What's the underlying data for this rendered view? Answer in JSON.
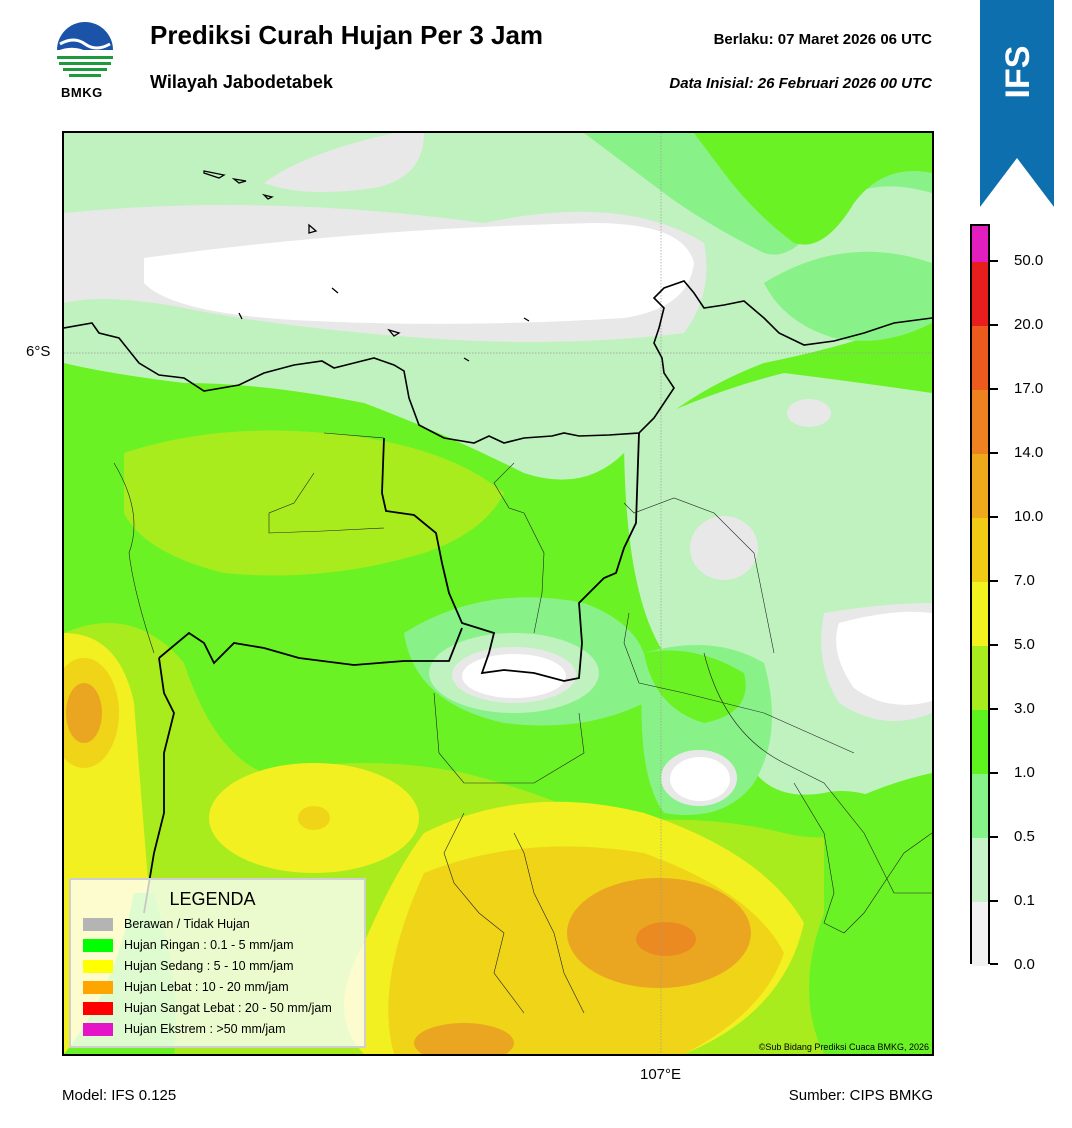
{
  "header": {
    "title": "Prediksi Curah Hujan Per 3 Jam",
    "subtitle": "Wilayah Jabodetabek",
    "valid_label": "Berlaku:  07 Maret 2026 06 UTC",
    "init_label": "Data Inisial:  26 Februari 2026 00 UTC",
    "logo_text": "BMKG",
    "badge_text": "IFS"
  },
  "map": {
    "lat_label": "6°S",
    "lon_label": "107°E",
    "copyright": "©Sub Bidang Prediksi Cuaca BMKG, 2026",
    "colors": {
      "white": "#ffffff",
      "lightgray": "#e8e8e8",
      "pale_green": "#bff2bf",
      "light_green": "#88f288",
      "green": "#6af224",
      "yellow_green": "#a8ec1e",
      "yellow": "#f2f020",
      "gold": "#f0d418",
      "orange": "#eaa621",
      "dark_orange": "#ec8a22"
    }
  },
  "colorbar": {
    "labels": [
      "50.0",
      "20.0",
      "17.0",
      "14.0",
      "10.0",
      "7.0",
      "5.0",
      "3.0",
      "1.0",
      "0.5",
      "0.1",
      "0.0"
    ],
    "colors_top_to_bottom": [
      "#e21ebf",
      "#e81e1e",
      "#ec5a1e",
      "#ee8220",
      "#eeaa1a",
      "#f2cc14",
      "#f2f21e",
      "#a8ec1e",
      "#5ef21e",
      "#86f28a",
      "#c8f2c8",
      "#f2f2f2"
    ]
  },
  "legend": {
    "title": "LEGENDA",
    "items": [
      {
        "label": "Berawan / Tidak Hujan",
        "color": "#b4b4b4"
      },
      {
        "label": "Hujan Ringan : 0.1 - 5 mm/jam",
        "color": "#00ff00"
      },
      {
        "label": "Hujan Sedang : 5 - 10 mm/jam",
        "color": "#ffff00"
      },
      {
        "label": "Hujan Lebat : 10 - 20 mm/jam",
        "color": "#ffa500"
      },
      {
        "label": "Hujan Sangat Lebat : 20 - 50 mm/jam",
        "color": "#ff0000"
      },
      {
        "label": "Hujan Ekstrem : >50 mm/jam",
        "color": "#e614c8"
      }
    ]
  },
  "footer": {
    "model": "Model: IFS 0.125",
    "source": "Sumber: CIPS BMKG"
  }
}
